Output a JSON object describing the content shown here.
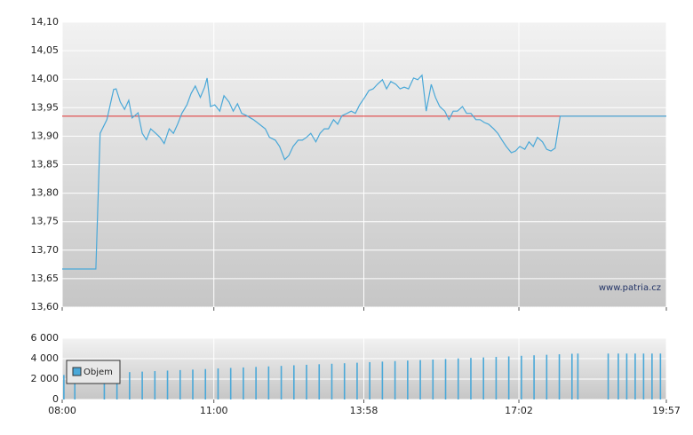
{
  "chart_data": [
    {
      "type": "line",
      "color": "#4aa8d8",
      "xlim": [
        480,
        1197
      ],
      "ylim": [
        13.6,
        14.1
      ],
      "yticks": [
        {
          "value": 13.6,
          "label": "13,60"
        },
        {
          "value": 13.65,
          "label": "13,65"
        },
        {
          "value": 13.7,
          "label": "13,70"
        },
        {
          "value": 13.75,
          "label": "13,75"
        },
        {
          "value": 13.8,
          "label": "13,80"
        },
        {
          "value": 13.85,
          "label": "13,85"
        },
        {
          "value": 13.9,
          "label": "13,90"
        },
        {
          "value": 13.95,
          "label": "13,95"
        },
        {
          "value": 14.0,
          "label": "14,00"
        },
        {
          "value": 14.05,
          "label": "14,05"
        },
        {
          "value": 14.1,
          "label": "14,10"
        }
      ],
      "grid": true,
      "reference_line": {
        "value": 13.935,
        "color": "#e03030"
      },
      "annotation": "www.patria.cz",
      "x": [
        480,
        520,
        525,
        533,
        541,
        544,
        549,
        554,
        559,
        563,
        570,
        575,
        580,
        585,
        591,
        596,
        601,
        607,
        612,
        617,
        622,
        628,
        633,
        638,
        644,
        649,
        652,
        656,
        661,
        667,
        672,
        678,
        683,
        688,
        693,
        699,
        707,
        714,
        721,
        726,
        733,
        738,
        744,
        749,
        754,
        760,
        765,
        770,
        775,
        781,
        786,
        791,
        796,
        802,
        807,
        812,
        818,
        823,
        828,
        833,
        839,
        844,
        849,
        854,
        860,
        865,
        870,
        876,
        881,
        886,
        891,
        897,
        902,
        907,
        912,
        918,
        923,
        928,
        934,
        939,
        944,
        949,
        955,
        960,
        965,
        971,
        976,
        981,
        986,
        992,
        997,
        1002,
        1007,
        1013,
        1018,
        1023,
        1029,
        1034,
        1039,
        1044,
        1050,
        1055,
        1060,
        1065,
        1071,
        1197
      ],
      "values": [
        13.667,
        13.667,
        13.905,
        13.929,
        13.982,
        13.983,
        13.96,
        13.947,
        13.963,
        13.932,
        13.941,
        13.905,
        13.894,
        13.913,
        13.905,
        13.898,
        13.887,
        13.913,
        13.905,
        13.921,
        13.94,
        13.955,
        13.975,
        13.988,
        13.968,
        13.986,
        14.002,
        13.952,
        13.955,
        13.944,
        13.971,
        13.96,
        13.944,
        13.957,
        13.94,
        13.936,
        13.929,
        13.921,
        13.913,
        13.898,
        13.893,
        13.882,
        13.859,
        13.866,
        13.882,
        13.893,
        13.893,
        13.898,
        13.905,
        13.89,
        13.905,
        13.913,
        13.913,
        13.929,
        13.921,
        13.936,
        13.94,
        13.944,
        13.94,
        13.955,
        13.968,
        13.98,
        13.983,
        13.991,
        13.999,
        13.983,
        13.996,
        13.991,
        13.983,
        13.986,
        13.983,
        14.002,
        13.999,
        14.007,
        13.944,
        13.991,
        13.968,
        13.952,
        13.944,
        13.929,
        13.944,
        13.944,
        13.952,
        13.94,
        13.94,
        13.929,
        13.929,
        13.924,
        13.921,
        13.913,
        13.905,
        13.893,
        13.882,
        13.871,
        13.874,
        13.882,
        13.877,
        13.89,
        13.882,
        13.898,
        13.89,
        13.877,
        13.874,
        13.879,
        13.935,
        13.935
      ]
    },
    {
      "type": "bar",
      "xlim": [
        480,
        1197
      ],
      "xticks": [
        {
          "value": 480,
          "label": "08:00"
        },
        {
          "value": 660,
          "label": "11:00"
        },
        {
          "value": 838,
          "label": "13:58"
        },
        {
          "value": 1022,
          "label": "17:02"
        },
        {
          "value": 1197,
          "label": "19:57"
        }
      ],
      "ylim": [
        0,
        6000
      ],
      "yticks": [
        0,
        {
          "value": 2000,
          "label": "2 000"
        },
        {
          "value": 4000,
          "label": "4 000"
        },
        {
          "value": 6000,
          "label": "6 000"
        }
      ],
      "grid": true,
      "x": [
        482,
        495,
        530,
        545,
        560,
        575,
        590,
        605,
        620,
        635,
        650,
        665,
        680,
        695,
        710,
        725,
        740,
        755,
        770,
        785,
        800,
        815,
        830,
        845,
        860,
        875,
        890,
        905,
        920,
        935,
        950,
        965,
        980,
        995,
        1010,
        1025,
        1040,
        1055,
        1070,
        1085,
        1092,
        1128,
        1140,
        1150,
        1160,
        1170,
        1180,
        1190
      ],
      "series": [
        {
          "name": "Objem",
          "color": "#4aa8d8",
          "values": [
            2400,
            2450,
            2570,
            2620,
            2680,
            2730,
            2780,
            2830,
            2880,
            2930,
            2980,
            3040,
            3090,
            3140,
            3190,
            3240,
            3290,
            3350,
            3400,
            3450,
            3500,
            3550,
            3600,
            3660,
            3710,
            3760,
            3810,
            3860,
            3910,
            3970,
            4020,
            4070,
            4120,
            4170,
            4220,
            4280,
            4330,
            4380,
            4430,
            4480,
            4500,
            4500,
            4500,
            4500,
            4500,
            4500,
            4500,
            4500
          ]
        }
      ]
    }
  ]
}
